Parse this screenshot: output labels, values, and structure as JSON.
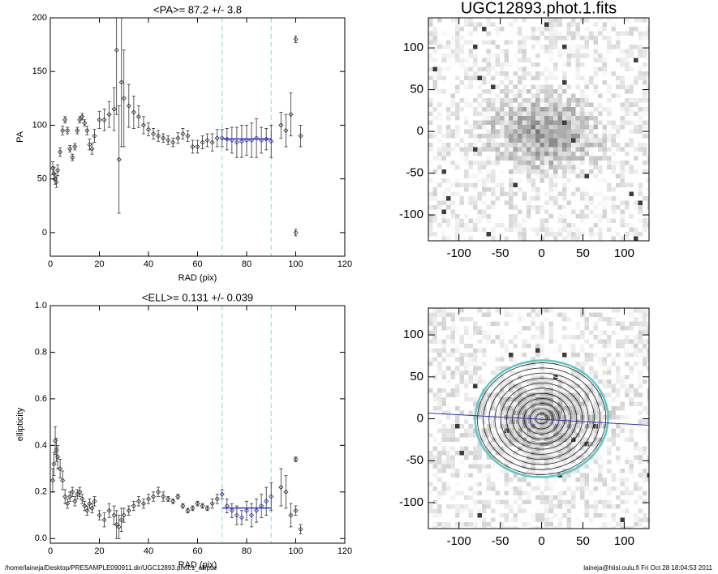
{
  "chart_data": [
    {
      "type": "scatter",
      "title": "<PA>=  87.2 +/-   3.8",
      "xlabel": "RAD (pix)",
      "ylabel": "PA",
      "xlim": [
        0,
        120
      ],
      "xticks": [
        0,
        20,
        40,
        60,
        80,
        100,
        120
      ],
      "ylim": [
        -22,
        200
      ],
      "yticks": [
        0,
        50,
        100,
        150,
        200
      ],
      "vlines": [
        70,
        90
      ],
      "vline_color": "#7fe0e0",
      "mean": 87.2,
      "fit_color": "#3030c0",
      "color": "#333333",
      "x": [
        1,
        1.5,
        2,
        2.5,
        3,
        4,
        5,
        6,
        7,
        8,
        9,
        10,
        11,
        12,
        13,
        14,
        15,
        16,
        17,
        18,
        20,
        22,
        24,
        26,
        27,
        28,
        29,
        30,
        32,
        34,
        36,
        38,
        40,
        42,
        44,
        46,
        48,
        50,
        52,
        54,
        56,
        58,
        60,
        62,
        64,
        66,
        68,
        70,
        72,
        74,
        76,
        78,
        80,
        82,
        84,
        86,
        88,
        90,
        94,
        96,
        98,
        100,
        100,
        102
      ],
      "values": [
        60,
        55,
        50,
        47,
        58,
        75,
        95,
        105,
        95,
        78,
        70,
        80,
        95,
        105,
        108,
        102,
        95,
        82,
        78,
        90,
        105,
        105,
        110,
        115,
        170,
        68,
        140,
        125,
        118,
        112,
        108,
        100,
        96,
        92,
        90,
        88,
        86,
        84,
        88,
        92,
        90,
        80,
        80,
        84,
        86,
        84,
        88,
        88,
        87,
        86,
        84,
        85,
        86,
        86,
        88,
        86,
        87,
        85,
        100,
        95,
        110,
        180,
        0,
        90
      ],
      "errors": [
        6,
        6,
        5,
        5,
        5,
        4,
        4,
        3,
        3,
        3,
        3,
        3,
        3,
        3,
        3,
        3,
        4,
        5,
        5,
        6,
        8,
        10,
        12,
        20,
        60,
        50,
        60,
        45,
        20,
        15,
        10,
        8,
        6,
        5,
        5,
        4,
        4,
        4,
        5,
        5,
        5,
        6,
        6,
        6,
        6,
        8,
        8,
        8,
        10,
        12,
        14,
        15,
        14,
        16,
        18,
        12,
        10,
        15,
        12,
        15,
        20,
        3,
        3,
        10
      ]
    },
    {
      "type": "scatter",
      "title": "<ELL>= 0.131 +/-  0.039",
      "xlabel": "RAD (pix)",
      "ylabel": "ellipticity",
      "xlim": [
        0,
        120
      ],
      "xticks": [
        0,
        20,
        40,
        60,
        80,
        100,
        120
      ],
      "ylim": [
        -0.02,
        1.0
      ],
      "yticks": [
        {
          "value": 0,
          "label": "0.0"
        },
        0.2,
        0.4,
        0.6,
        0.8,
        {
          "value": 1,
          "label": "1.0"
        }
      ],
      "vlines": [
        70,
        90
      ],
      "vline_color": "#7fe0e0",
      "mean": 0.131,
      "fit_color": "#3030c0",
      "color": "#333333",
      "x": [
        1,
        1.5,
        2,
        2.5,
        3,
        4,
        5,
        6,
        7,
        8,
        9,
        10,
        11,
        12,
        13,
        14,
        15,
        16,
        17,
        18,
        20,
        22,
        24,
        26,
        27,
        28,
        29,
        30,
        32,
        34,
        36,
        38,
        40,
        42,
        44,
        46,
        48,
        50,
        52,
        54,
        56,
        58,
        60,
        62,
        64,
        66,
        68,
        70,
        72,
        74,
        76,
        78,
        80,
        82,
        84,
        86,
        88,
        90,
        94,
        96,
        98,
        100,
        100,
        102
      ],
      "values": [
        0.25,
        0.32,
        0.42,
        0.38,
        0.35,
        0.3,
        0.25,
        0.18,
        0.15,
        0.18,
        0.2,
        0.16,
        0.19,
        0.2,
        0.17,
        0.14,
        0.12,
        0.15,
        0.13,
        0.16,
        0.1,
        0.08,
        0.12,
        0.1,
        0.06,
        0.05,
        0.08,
        0.1,
        0.12,
        0.14,
        0.16,
        0.15,
        0.17,
        0.18,
        0.2,
        0.18,
        0.17,
        0.16,
        0.18,
        0.14,
        0.12,
        0.13,
        0.15,
        0.14,
        0.13,
        0.15,
        0.17,
        0.19,
        0.14,
        0.12,
        0.1,
        0.09,
        0.12,
        0.1,
        0.12,
        0.14,
        0.16,
        0.18,
        0.22,
        0.2,
        0.1,
        0.34,
        0.12,
        0.04
      ],
      "errors": [
        0.05,
        0.05,
        0.06,
        0.05,
        0.05,
        0.04,
        0.04,
        0.03,
        0.02,
        0.02,
        0.02,
        0.02,
        0.02,
        0.02,
        0.02,
        0.02,
        0.02,
        0.02,
        0.02,
        0.02,
        0.02,
        0.03,
        0.03,
        0.04,
        0.06,
        0.05,
        0.05,
        0.03,
        0.02,
        0.02,
        0.02,
        0.02,
        0.02,
        0.02,
        0.02,
        0.02,
        0.01,
        0.01,
        0.01,
        0.01,
        0.01,
        0.01,
        0.01,
        0.01,
        0.01,
        0.02,
        0.02,
        0.02,
        0.03,
        0.03,
        0.04,
        0.03,
        0.04,
        0.05,
        0.05,
        0.05,
        0.06,
        0.06,
        0.08,
        0.07,
        0.05,
        0.01,
        0.02,
        0.02
      ]
    },
    {
      "type": "image",
      "title": "UGC12893.phot.1.fits",
      "xlim": [
        -137,
        130
      ],
      "xticks": [
        -100,
        -50,
        0,
        50,
        100
      ],
      "ylim": [
        -131,
        136
      ],
      "yticks": [
        -100,
        -50,
        0,
        50,
        100
      ]
    },
    {
      "type": "image",
      "contours": true,
      "xlim": [
        -137,
        130
      ],
      "xticks": [
        -100,
        -50,
        0,
        50,
        100
      ],
      "ylim": [
        -131,
        132
      ],
      "yticks": [
        -100,
        -50,
        0,
        50,
        100
      ]
    }
  ],
  "footer": {
    "left": "/home/laineja/Desktop/PRESAMPLE090911.dir/UGC12893.phot.1_ellipse",
    "right": "laineja@hiisi.oulu.fi  Fri Oct 28 18:04:53 2011"
  }
}
